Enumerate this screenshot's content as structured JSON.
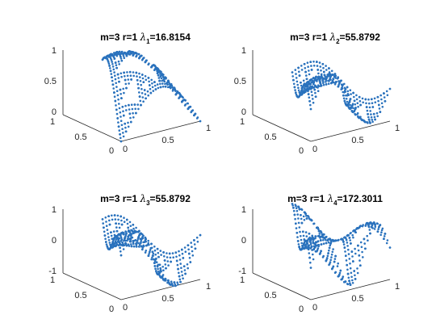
{
  "chart_data": [
    {
      "type": "scatter",
      "title": {
        "prefix": "m=3 r=1 ",
        "symbol": "λ",
        "index": "1",
        "value": "=16.8154"
      },
      "xlim": [
        0,
        1
      ],
      "ylim": [
        0,
        1
      ],
      "zlim": [
        0,
        1
      ],
      "x_ticks": [
        "0",
        "0.5",
        "1"
      ],
      "y_ticks": [
        "0",
        "0.5",
        "1"
      ],
      "z_ticks": [
        "0",
        "0.5",
        "1"
      ],
      "grid": false,
      "color": "#2a72bd",
      "shape": "arch"
    },
    {
      "type": "scatter",
      "title": {
        "prefix": "m=3 r=1 ",
        "symbol": "λ",
        "index": "2",
        "value": "=55.8792"
      },
      "xlim": [
        0,
        1
      ],
      "ylim": [
        0,
        1
      ],
      "zlim": [
        0,
        1
      ],
      "x_ticks": [
        "0",
        "0.5",
        "1"
      ],
      "y_ticks": [
        "0",
        "0.5",
        "1"
      ],
      "z_ticks": [
        "0",
        "0.5",
        "1"
      ],
      "grid": false,
      "color": "#2a72bd",
      "shape": "saddle"
    },
    {
      "type": "scatter",
      "title": {
        "prefix": "m=3 r=1 ",
        "symbol": "λ",
        "index": "3",
        "value": "=55.8792"
      },
      "xlim": [
        0,
        1
      ],
      "ylim": [
        0,
        1
      ],
      "zlim": [
        -1,
        1
      ],
      "x_ticks": [
        "0",
        "0.5",
        "1"
      ],
      "y_ticks": [
        "0",
        "0.5",
        "1"
      ],
      "z_ticks": [
        "-1",
        "0",
        "1"
      ],
      "grid": false,
      "color": "#2a72bd",
      "shape": "wave-down"
    },
    {
      "type": "scatter",
      "title": {
        "prefix": "m=3 r=1 ",
        "symbol": "λ",
        "index": "4",
        "value": "=172.3011"
      },
      "xlim": [
        0,
        1
      ],
      "ylim": [
        0,
        1
      ],
      "zlim": [
        -1,
        1
      ],
      "x_ticks": [
        "0",
        "0.5",
        "1"
      ],
      "y_ticks": [
        "0",
        "0.5",
        "1"
      ],
      "z_ticks": [
        "-1",
        "0",
        "1"
      ],
      "grid": false,
      "color": "#2a72bd",
      "shape": "double-wave"
    }
  ]
}
